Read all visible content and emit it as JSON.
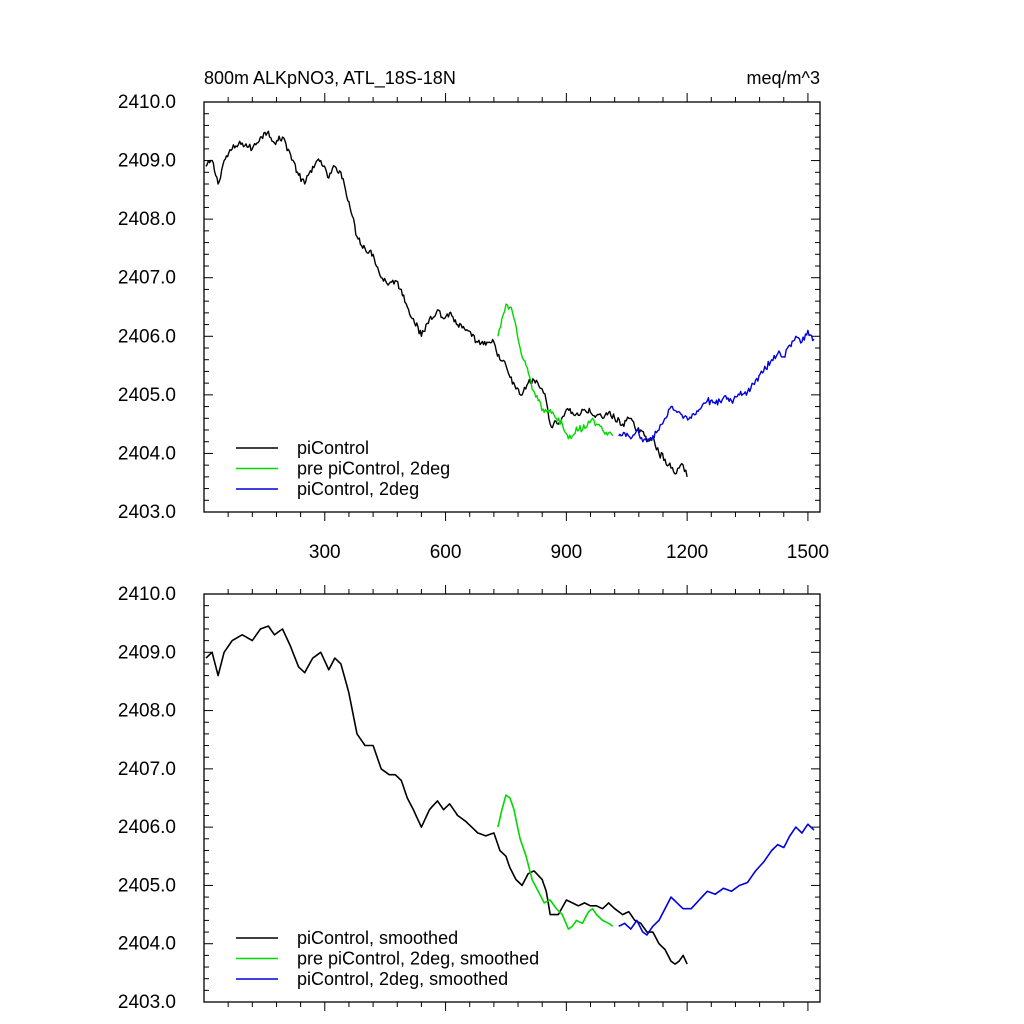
{
  "chart_data": [
    {
      "type": "line",
      "title_left": "800m ALKpNO3, ATL_18S-18N",
      "title_right": "meq/m^3",
      "xlabel": "",
      "ylabel": "",
      "xlim": [
        0,
        1530
      ],
      "ylim": [
        2403.0,
        2410.0
      ],
      "xticks": [
        300,
        600,
        900,
        1200,
        1500
      ],
      "xtick_labels": [
        "300",
        "600",
        "900",
        "1200",
        "1500"
      ],
      "show_xtick_labels": true,
      "yticks": [
        2403.0,
        2404.0,
        2405.0,
        2406.0,
        2407.0,
        2408.0,
        2409.0,
        2410.0
      ],
      "ytick_labels": [
        "2403.0",
        "2404.0",
        "2405.0",
        "2406.0",
        "2407.0",
        "2408.0",
        "2409.0",
        "2410.0"
      ],
      "legend": "bottom-left",
      "noisy": true,
      "series": [
        {
          "name": "piControl",
          "color": "#000000",
          "x": [
            5,
            20,
            35,
            50,
            70,
            95,
            120,
            140,
            160,
            175,
            195,
            215,
            235,
            250,
            270,
            290,
            310,
            325,
            340,
            360,
            380,
            400,
            420,
            440,
            460,
            475,
            490,
            505,
            520,
            540,
            560,
            580,
            595,
            610,
            630,
            650,
            665,
            680,
            700,
            720,
            735,
            750,
            760,
            775,
            790,
            805,
            820,
            840,
            850,
            860,
            880,
            900,
            915,
            930,
            945,
            960,
            975,
            990,
            1005,
            1020,
            1040,
            1055,
            1070,
            1085,
            1100,
            1115,
            1130,
            1145,
            1160,
            1170,
            1180,
            1190,
            1200
          ],
          "values": [
            2408.9,
            2409.0,
            2408.6,
            2409.0,
            2409.2,
            2409.3,
            2409.2,
            2409.4,
            2409.5,
            2409.3,
            2409.4,
            2409.1,
            2408.75,
            2408.6,
            2408.9,
            2409.0,
            2408.7,
            2408.9,
            2408.8,
            2408.3,
            2407.7,
            2407.5,
            2407.4,
            2407.0,
            2406.9,
            2406.95,
            2406.8,
            2406.5,
            2406.3,
            2406.0,
            2406.3,
            2406.45,
            2406.3,
            2406.4,
            2406.2,
            2406.1,
            2406.0,
            2405.9,
            2405.85,
            2405.9,
            2405.6,
            2405.5,
            2405.3,
            2405.1,
            2405.0,
            2405.2,
            2405.25,
            2405.1,
            2404.9,
            2404.5,
            2404.5,
            2404.75,
            2404.7,
            2404.65,
            2404.75,
            2404.7,
            2404.65,
            2404.6,
            2404.7,
            2404.6,
            2404.5,
            2404.6,
            2404.45,
            2404.4,
            2404.2,
            2404.3,
            2404.0,
            2403.9,
            2403.75,
            2403.65,
            2403.75,
            2403.8,
            2403.6
          ]
        },
        {
          "name": "pre piControl, 2deg",
          "color": "#00d800",
          "x": [
            730,
            740,
            750,
            760,
            770,
            785,
            800,
            815,
            830,
            845,
            860,
            875,
            890,
            905,
            915,
            925,
            940,
            955,
            965,
            975,
            990,
            1005,
            1015
          ],
          "values": [
            2406.0,
            2406.3,
            2406.55,
            2406.5,
            2406.3,
            2405.8,
            2405.5,
            2405.1,
            2404.9,
            2404.7,
            2404.75,
            2404.6,
            2404.5,
            2404.25,
            2404.3,
            2404.45,
            2404.4,
            2404.55,
            2404.6,
            2404.5,
            2404.4,
            2404.35,
            2404.3
          ]
        },
        {
          "name": "piControl, 2deg",
          "color": "#0000e0",
          "x": [
            1030,
            1045,
            1060,
            1075,
            1090,
            1100,
            1115,
            1130,
            1145,
            1160,
            1175,
            1190,
            1210,
            1230,
            1250,
            1270,
            1290,
            1310,
            1330,
            1350,
            1370,
            1390,
            1410,
            1425,
            1440,
            1455,
            1470,
            1485,
            1500,
            1515
          ],
          "values": [
            2404.3,
            2404.35,
            2404.25,
            2404.4,
            2404.2,
            2404.2,
            2404.3,
            2404.4,
            2404.6,
            2404.8,
            2404.7,
            2404.6,
            2404.6,
            2404.75,
            2404.9,
            2404.85,
            2404.95,
            2404.9,
            2405.0,
            2405.05,
            2405.25,
            2405.4,
            2405.6,
            2405.7,
            2405.65,
            2405.85,
            2406.0,
            2405.9,
            2406.1,
            2405.95
          ]
        }
      ]
    },
    {
      "type": "line",
      "title_left": "",
      "title_right": "",
      "xlabel": "",
      "ylabel": "",
      "xlim": [
        0,
        1530
      ],
      "ylim": [
        2403.0,
        2410.0
      ],
      "xticks": [
        300,
        600,
        900,
        1200,
        1500
      ],
      "xtick_labels": [],
      "show_xtick_labels": false,
      "yticks": [
        2403.0,
        2404.0,
        2405.0,
        2406.0,
        2407.0,
        2408.0,
        2409.0,
        2410.0
      ],
      "ytick_labels": [
        "2403.0",
        "2404.0",
        "2405.0",
        "2406.0",
        "2407.0",
        "2408.0",
        "2409.0",
        "2410.0"
      ],
      "legend": "bottom-left",
      "noisy": false,
      "series": [
        {
          "name": "piControl, smoothed",
          "color": "#000000",
          "x": [
            5,
            20,
            35,
            50,
            70,
            95,
            120,
            140,
            160,
            175,
            195,
            215,
            235,
            250,
            270,
            290,
            310,
            325,
            340,
            360,
            380,
            400,
            420,
            440,
            460,
            475,
            490,
            505,
            520,
            540,
            560,
            580,
            595,
            610,
            630,
            650,
            665,
            680,
            700,
            720,
            735,
            750,
            760,
            775,
            790,
            805,
            820,
            840,
            850,
            860,
            880,
            900,
            915,
            930,
            945,
            960,
            975,
            990,
            1005,
            1020,
            1040,
            1055,
            1070,
            1085,
            1100,
            1115,
            1130,
            1145,
            1160,
            1170,
            1180,
            1190,
            1200
          ],
          "values": [
            2408.9,
            2409.0,
            2408.6,
            2409.0,
            2409.2,
            2409.3,
            2409.2,
            2409.4,
            2409.45,
            2409.3,
            2409.4,
            2409.1,
            2408.75,
            2408.65,
            2408.9,
            2409.0,
            2408.7,
            2408.9,
            2408.8,
            2408.3,
            2407.6,
            2407.4,
            2407.4,
            2407.0,
            2406.9,
            2406.9,
            2406.8,
            2406.5,
            2406.3,
            2406.0,
            2406.3,
            2406.45,
            2406.3,
            2406.4,
            2406.2,
            2406.1,
            2406.0,
            2405.9,
            2405.85,
            2405.9,
            2405.6,
            2405.5,
            2405.3,
            2405.1,
            2405.0,
            2405.2,
            2405.25,
            2405.1,
            2404.9,
            2404.5,
            2404.5,
            2404.75,
            2404.7,
            2404.65,
            2404.7,
            2404.65,
            2404.65,
            2404.6,
            2404.7,
            2404.6,
            2404.5,
            2404.55,
            2404.4,
            2404.35,
            2404.2,
            2404.2,
            2404.0,
            2403.9,
            2403.7,
            2403.65,
            2403.7,
            2403.8,
            2403.65
          ]
        },
        {
          "name": "pre piControl, 2deg, smoothed",
          "color": "#00d800",
          "x": [
            730,
            740,
            750,
            760,
            770,
            785,
            800,
            815,
            830,
            845,
            860,
            875,
            890,
            905,
            915,
            925,
            940,
            955,
            965,
            975,
            990,
            1005,
            1015
          ],
          "values": [
            2406.0,
            2406.3,
            2406.55,
            2406.5,
            2406.3,
            2405.8,
            2405.5,
            2405.1,
            2404.9,
            2404.7,
            2404.75,
            2404.6,
            2404.5,
            2404.25,
            2404.3,
            2404.4,
            2404.35,
            2404.55,
            2404.6,
            2404.5,
            2404.4,
            2404.35,
            2404.3
          ]
        },
        {
          "name": "piControl, 2deg, smoothed",
          "color": "#0000e0",
          "x": [
            1030,
            1045,
            1060,
            1075,
            1090,
            1100,
            1115,
            1130,
            1145,
            1160,
            1175,
            1190,
            1210,
            1230,
            1250,
            1270,
            1290,
            1310,
            1330,
            1350,
            1370,
            1390,
            1410,
            1425,
            1440,
            1455,
            1470,
            1485,
            1500,
            1515
          ],
          "values": [
            2404.3,
            2404.35,
            2404.25,
            2404.4,
            2404.2,
            2404.15,
            2404.3,
            2404.4,
            2404.6,
            2404.8,
            2404.7,
            2404.6,
            2404.6,
            2404.75,
            2404.9,
            2404.85,
            2404.95,
            2404.9,
            2405.0,
            2405.05,
            2405.25,
            2405.4,
            2405.6,
            2405.7,
            2405.65,
            2405.85,
            2406.0,
            2405.9,
            2406.05,
            2405.95
          ]
        }
      ]
    }
  ]
}
